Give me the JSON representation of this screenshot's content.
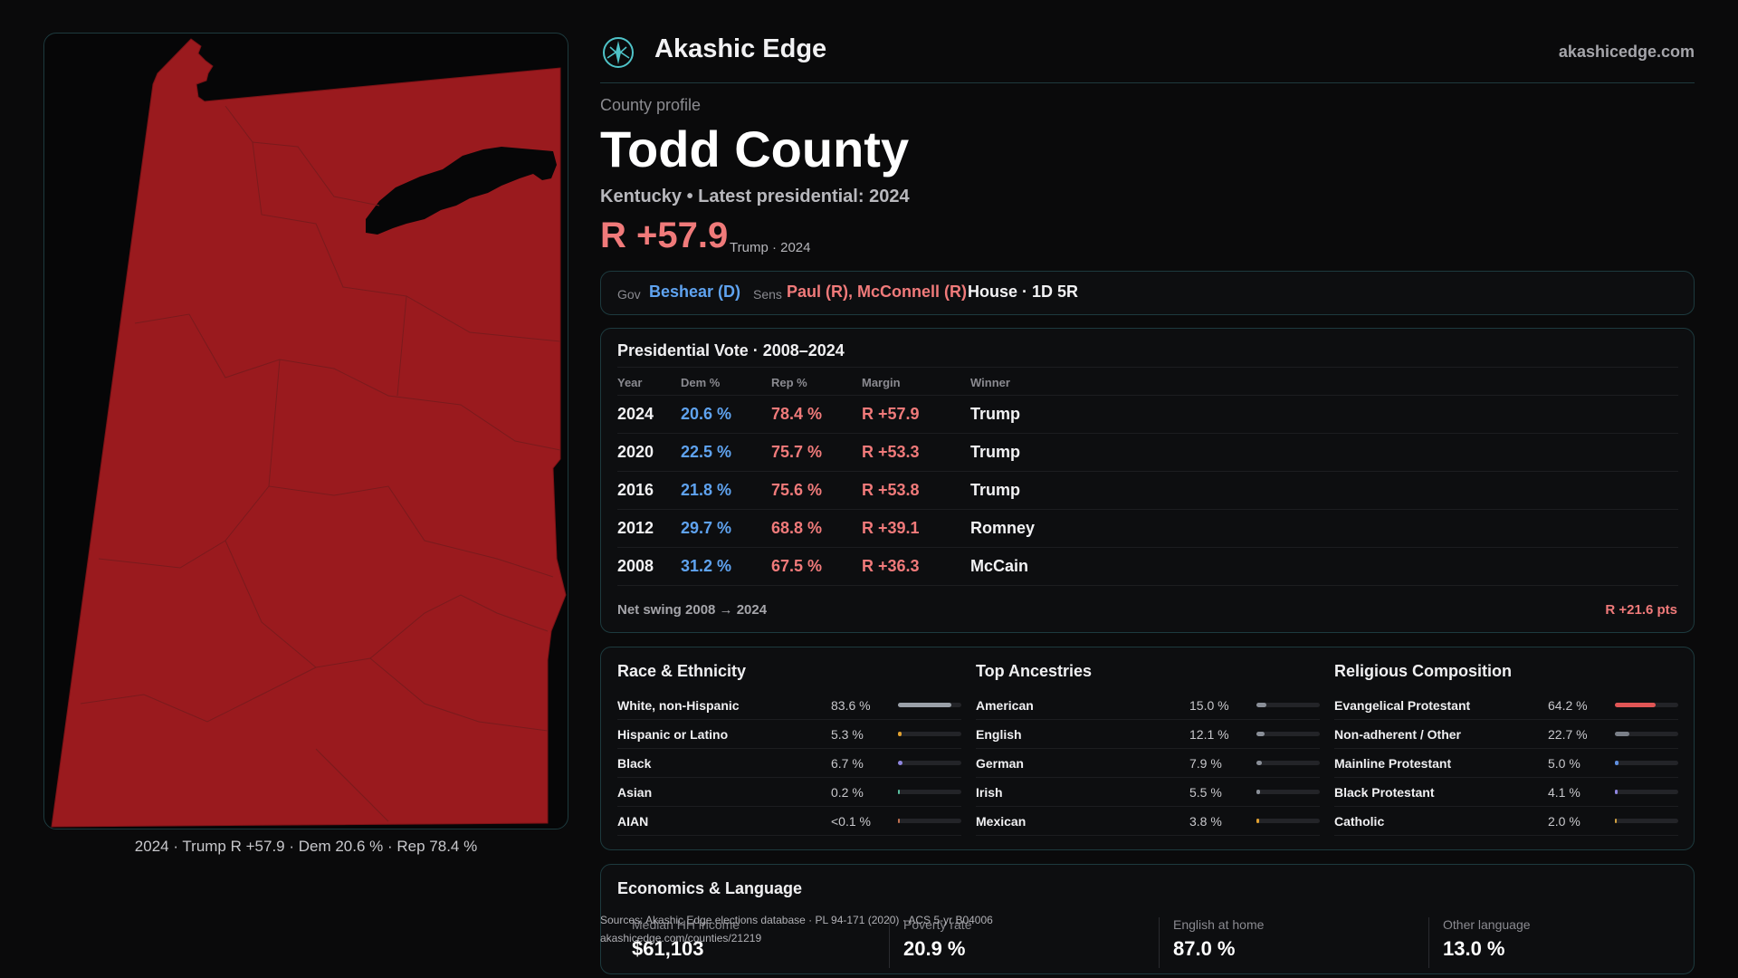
{
  "brand": {
    "name": "Akashic Edge",
    "site": "akashicedge.com",
    "logo_icon": "compass-star-icon",
    "accent": "#4fc3c8"
  },
  "profile": {
    "kicker": "County profile",
    "county": "Todd County",
    "subtitle": "Kentucky • Latest presidential: 2024",
    "margin": "R +57.9",
    "margin_note": "Trump · 2024"
  },
  "officials": {
    "gov_label": "Gov",
    "gov": "Beshear (D)",
    "sens_label": "Sens",
    "sens": "Paul (R), McConnell (R)",
    "house": "House · 1D 5R"
  },
  "presidential": {
    "title": "Presidential Vote · 2008–2024",
    "headers": {
      "year": "Year",
      "dem": "Dem %",
      "rep": "Rep %",
      "margin": "Margin",
      "winner": "Winner"
    },
    "rows": [
      {
        "year": "2024",
        "dem": "20.6 %",
        "rep": "78.4 %",
        "margin": "R +57.9",
        "winner": "Trump"
      },
      {
        "year": "2020",
        "dem": "22.5 %",
        "rep": "75.7 %",
        "margin": "R +53.3",
        "winner": "Trump"
      },
      {
        "year": "2016",
        "dem": "21.8 %",
        "rep": "75.6 %",
        "margin": "R +53.8",
        "winner": "Trump"
      },
      {
        "year": "2012",
        "dem": "29.7 %",
        "rep": "68.8 %",
        "margin": "R +39.1",
        "winner": "Romney"
      },
      {
        "year": "2008",
        "dem": "31.2 %",
        "rep": "67.5 %",
        "margin": "R +36.3",
        "winner": "McCain"
      }
    ],
    "swing_label": "Net swing 2008 → 2024",
    "swing_value": "R +21.6 pts"
  },
  "race": {
    "title": "Race & Ethnicity",
    "rows": [
      {
        "name": "White, non-Hispanic",
        "pct": "83.6 %",
        "value": 83.6,
        "color": "#9aa0a8"
      },
      {
        "name": "Hispanic or Latino",
        "pct": "5.3 %",
        "value": 5.3,
        "color": "#e0a030"
      },
      {
        "name": "Black",
        "pct": "6.7 %",
        "value": 6.7,
        "color": "#8f86e0"
      },
      {
        "name": "Asian",
        "pct": "0.2 %",
        "value": 0.2,
        "color": "#5ac0a0"
      },
      {
        "name": "AIAN",
        "pct": "<0.1 %",
        "value": 0.05,
        "color": "#c07050"
      }
    ]
  },
  "ancestry": {
    "title": "Top Ancestries",
    "rows": [
      {
        "name": "American",
        "pct": "15.0 %",
        "value": 15.0,
        "color": "#8a8f98"
      },
      {
        "name": "English",
        "pct": "12.1 %",
        "value": 12.1,
        "color": "#8a8f98"
      },
      {
        "name": "German",
        "pct": "7.9 %",
        "value": 7.9,
        "color": "#8a8f98"
      },
      {
        "name": "Irish",
        "pct": "5.5 %",
        "value": 5.5,
        "color": "#8a8f98"
      },
      {
        "name": "Mexican",
        "pct": "3.8 %",
        "value": 3.8,
        "color": "#e0a030"
      }
    ]
  },
  "religion": {
    "title": "Religious Composition",
    "rows": [
      {
        "name": "Evangelical Protestant",
        "pct": "64.2 %",
        "value": 64.2,
        "color": "#e05555"
      },
      {
        "name": "Non-adherent / Other",
        "pct": "22.7 %",
        "value": 22.7,
        "color": "#7a7f88"
      },
      {
        "name": "Mainline Protestant",
        "pct": "5.0 %",
        "value": 5.0,
        "color": "#5f8fe0"
      },
      {
        "name": "Black Protestant",
        "pct": "4.1 %",
        "value": 4.1,
        "color": "#8f86e0"
      },
      {
        "name": "Catholic",
        "pct": "2.0 %",
        "value": 2.0,
        "color": "#d0a040"
      }
    ]
  },
  "economics": {
    "title": "Economics & Language",
    "stats": [
      {
        "label": "Median HH income",
        "value": "$61,103"
      },
      {
        "label": "Poverty rate",
        "value": "20.9 %"
      },
      {
        "label": "English at home",
        "value": "87.0 %"
      },
      {
        "label": "Other language",
        "value": "13.0 %"
      }
    ]
  },
  "sources": {
    "line1": "Sources: Akashic Edge elections database · PL 94-171 (2020) · ACS 5-yr B04006",
    "line2": "akashicedge.com/counties/21219"
  },
  "map": {
    "caption": "2024 · Trump R +57.9 · Dem 20.6 % · Rep 78.4 %",
    "fill": "#9a1a1e",
    "border": "#7a1216"
  }
}
